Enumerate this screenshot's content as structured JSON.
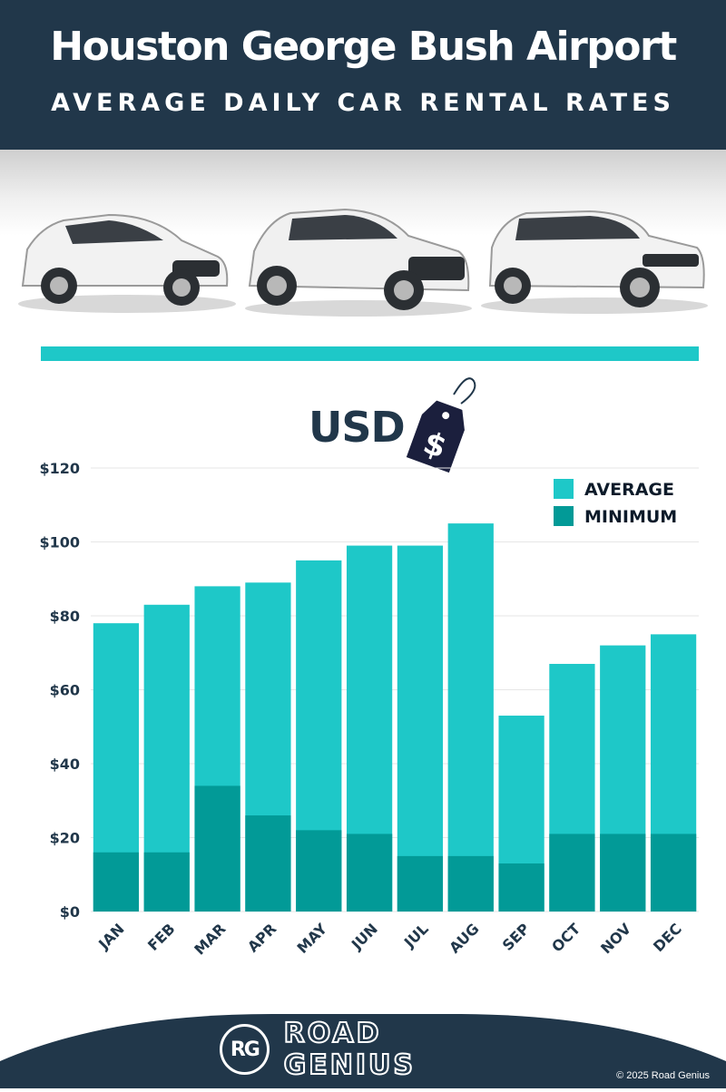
{
  "header": {
    "title": "Houston George Bush Airport",
    "subtitle": "AVERAGE DAILY CAR RENTAL RATES"
  },
  "currency_label": "USD",
  "price_tag_symbol": "$",
  "footer": {
    "logo_text": "RG",
    "brand_name": "ROAD GENIUS",
    "copyright": "© 2025 Road Genius"
  },
  "colors": {
    "navy": "#21374a",
    "average": "#1ec8c8",
    "minimum": "#029a97",
    "accent_bar": "#1ec8c8"
  },
  "chart_data": {
    "type": "bar",
    "stacked": false,
    "categories": [
      "JAN",
      "FEB",
      "MAR",
      "APR",
      "MAY",
      "JUN",
      "JUL",
      "AUG",
      "SEP",
      "OCT",
      "NOV",
      "DEC"
    ],
    "series": [
      {
        "name": "AVERAGE",
        "color": "#1ec8c8",
        "values": [
          78,
          83,
          88,
          89,
          95,
          99,
          99,
          105,
          53,
          67,
          72,
          75
        ]
      },
      {
        "name": "MINIMUM",
        "color": "#029a97",
        "values": [
          16,
          16,
          34,
          26,
          22,
          21,
          15,
          15,
          13,
          21,
          21,
          21
        ]
      }
    ],
    "ylim": [
      0,
      120
    ],
    "yticks": [
      "$0",
      "$20",
      "$40",
      "$60",
      "$80",
      "$100",
      "$120"
    ],
    "ytick_values": [
      0,
      20,
      40,
      60,
      80,
      100,
      120
    ],
    "grid": true,
    "legend": "top-right"
  }
}
